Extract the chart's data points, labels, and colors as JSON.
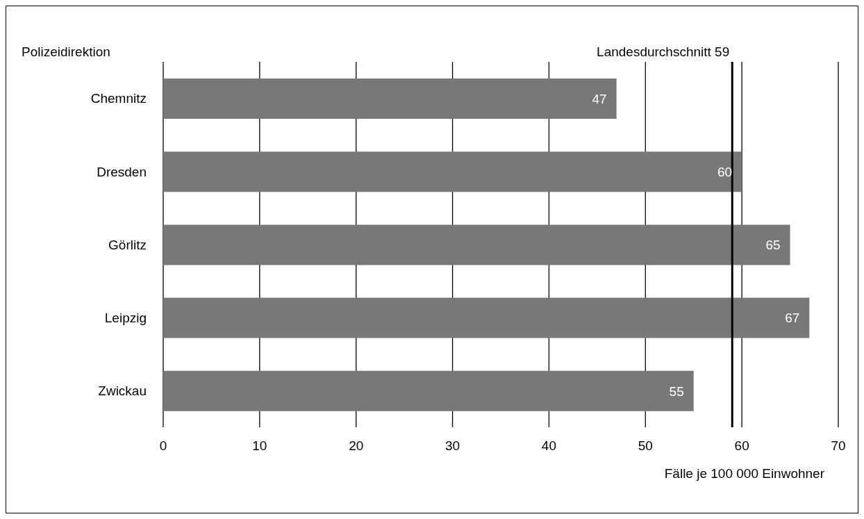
{
  "chart_data": {
    "type": "bar",
    "orientation": "horizontal",
    "ylabel": "Polizeidirektion",
    "xlabel": "Fälle je 100 000 Einwohner",
    "categories": [
      "Chemnitz",
      "Dresden",
      "Görlitz",
      "Leipzig",
      "Zwickau"
    ],
    "values": [
      47,
      60,
      65,
      67,
      55
    ],
    "color": "#77787a",
    "xlim": [
      0,
      70
    ],
    "xticks": [
      0,
      10,
      20,
      30,
      40,
      50,
      60,
      70
    ],
    "grid": "x",
    "data_labels": true,
    "ref_lines": [
      {
        "axis": "x",
        "value": 59,
        "label": "Landesdurchschnitt 59",
        "color": "#000000"
      }
    ]
  }
}
